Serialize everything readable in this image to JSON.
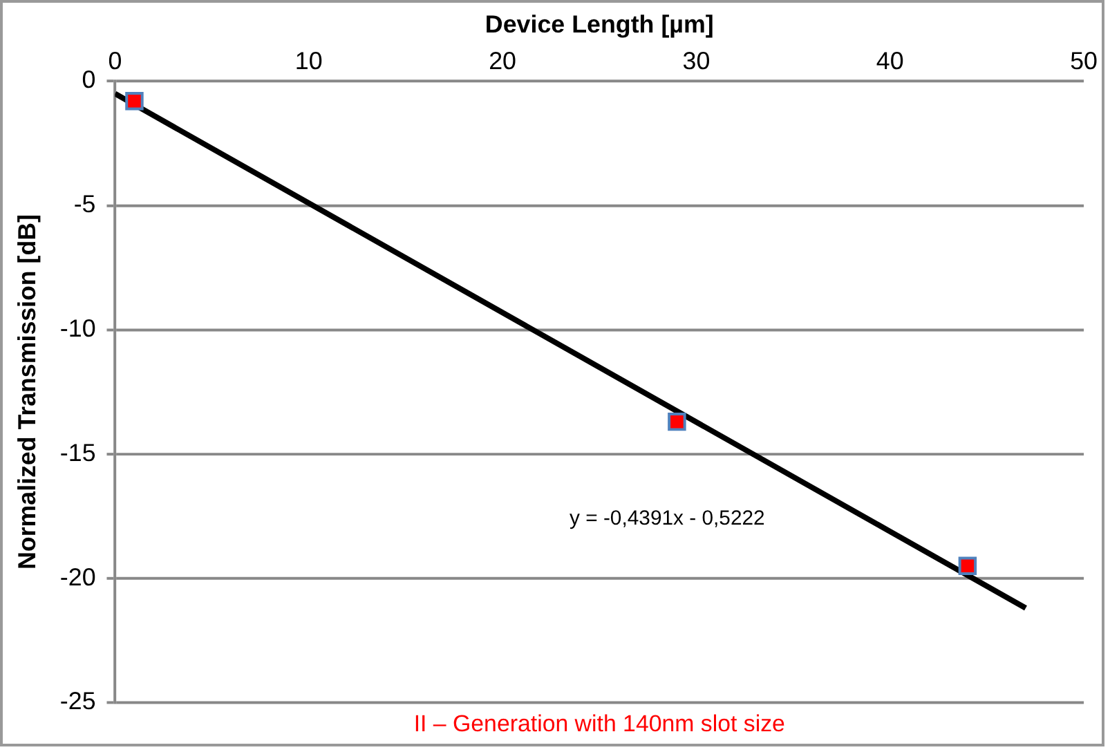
{
  "chart_data": {
    "type": "scatter",
    "xlabel": "Device Length [µm]",
    "ylabel": "Normalized Transmission [dB]",
    "series": [
      {
        "color": "#ff0000",
        "x": [
          1,
          29,
          44
        ],
        "values": [
          -0.8,
          -13.7,
          -19.5
        ]
      },
      {
        "type": "line",
        "color": "#000000",
        "marker": "none",
        "x": [
          0,
          47
        ],
        "values": [
          -0.5,
          -21.2
        ]
      }
    ],
    "xlim": [
      0,
      50
    ],
    "xticks": [
      0,
      10,
      20,
      30,
      40,
      50
    ],
    "ylim": [
      -25,
      0
    ],
    "yticks": [
      -25,
      -20,
      -15,
      -10,
      -5,
      0
    ],
    "grid": "y",
    "legend": false,
    "marker": "square",
    "annotations": [
      "y = -0,4391x - 0,5222",
      "II – Generation with 140nm slot size"
    ]
  }
}
